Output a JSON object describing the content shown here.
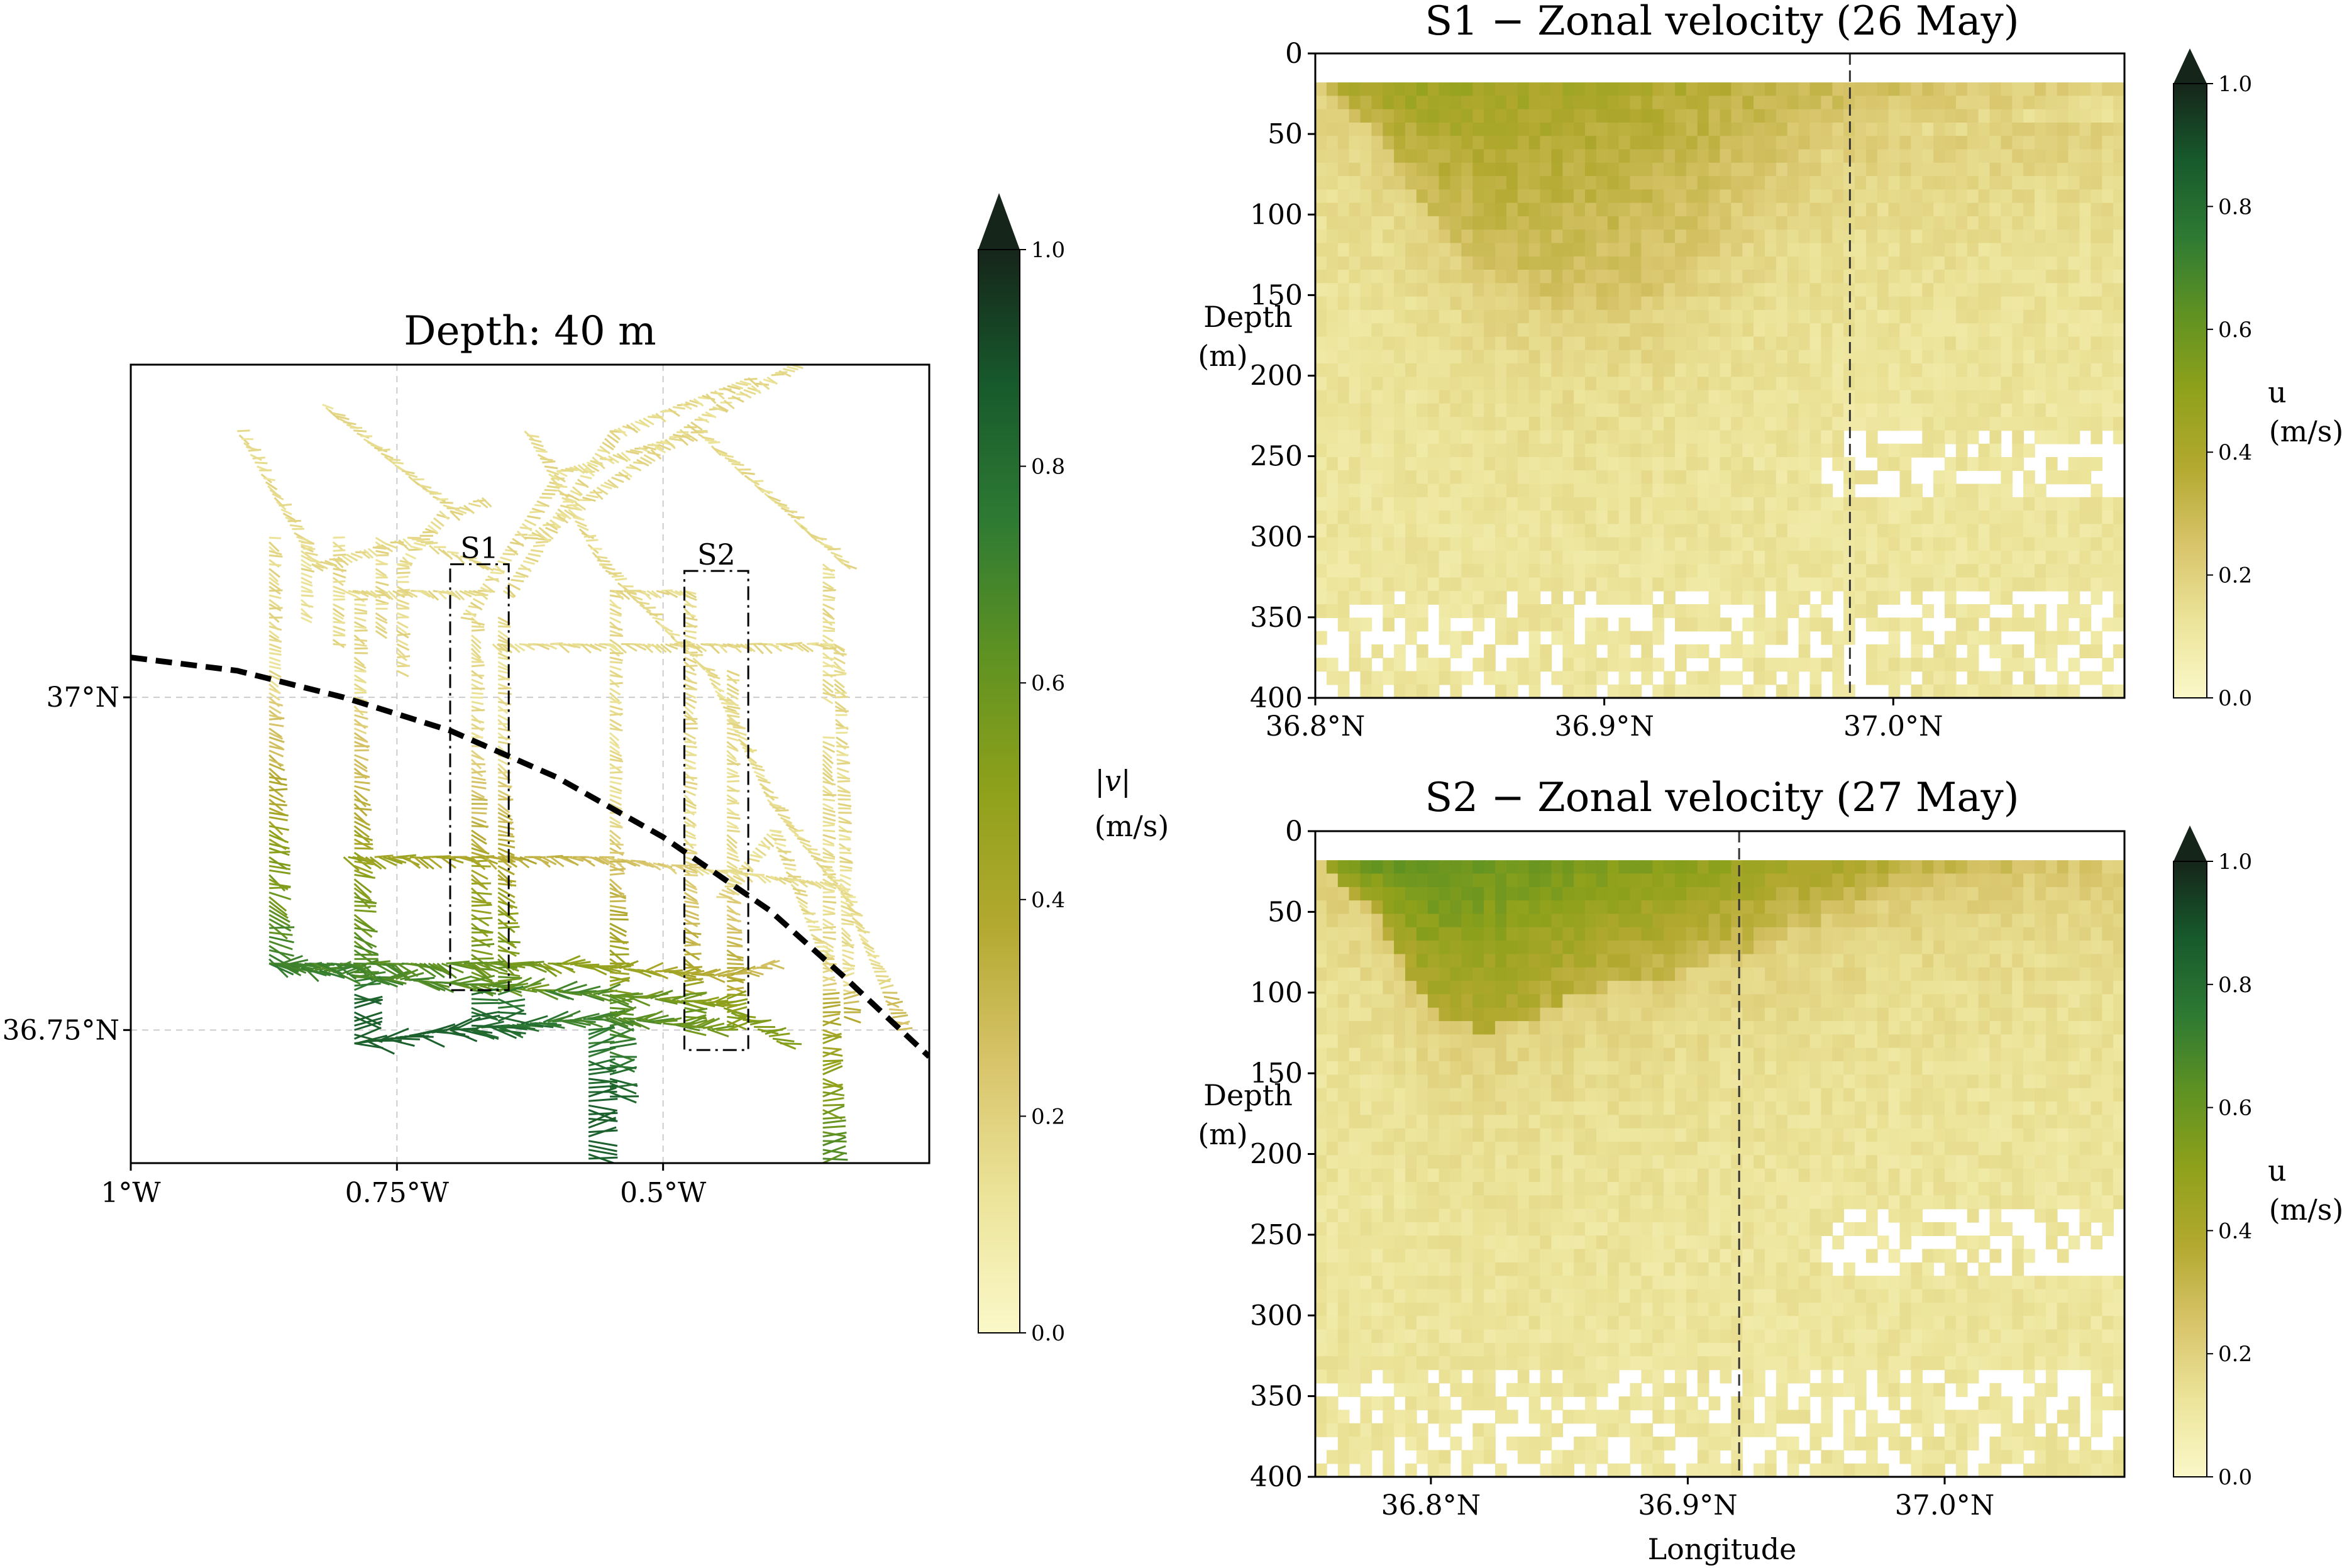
{
  "colormap": {
    "stops": [
      "#fbf8c9",
      "#ece49a",
      "#d8c46a",
      "#b3a930",
      "#8fa11b",
      "#5f9222",
      "#2e7a33",
      "#175a2c",
      "#16251a"
    ]
  },
  "chart_data": [
    {
      "id": "map",
      "type": "vector-map",
      "title": "Depth: 40 m",
      "xticks": [
        "1°W",
        "0.75°W",
        "0.5°W"
      ],
      "xtick_values": [
        -1.0,
        -0.75,
        -0.5
      ],
      "yticks": [
        "37°N",
        "36.75°N"
      ],
      "ytick_values": [
        37.0,
        36.75
      ],
      "xlim": [
        -1.0,
        -0.25
      ],
      "ylim": [
        36.65,
        37.25
      ],
      "grid": true,
      "boxes": [
        {
          "label": "S1",
          "lon_range": [
            -0.7,
            -0.645
          ],
          "lat_range": [
            36.78,
            37.1
          ]
        },
        {
          "label": "S2",
          "lon_range": [
            -0.48,
            -0.42
          ],
          "lat_range": [
            36.735,
            37.095
          ]
        }
      ],
      "front_curve": {
        "style": "dashed",
        "lon": [
          -1.0,
          -0.9,
          -0.8,
          -0.7,
          -0.6,
          -0.5,
          -0.4,
          -0.33,
          -0.25
        ],
        "lat": [
          37.03,
          37.02,
          37.0,
          36.975,
          36.94,
          36.895,
          36.84,
          36.79,
          36.73
        ]
      },
      "colorbar": {
        "label": "|v|",
        "unit": "(m/s)",
        "min": 0.0,
        "max": 1.0,
        "ticks": [
          "0.0",
          "0.2",
          "0.4",
          "0.6",
          "0.8",
          "1.0"
        ],
        "extend": "max"
      }
    },
    {
      "id": "s1",
      "type": "heatmap",
      "title": "S1 − Zonal velocity (26 May)",
      "xticks": [
        "36.8°N",
        "36.9°N",
        "37.0°N"
      ],
      "xtick_values": [
        36.8,
        36.9,
        37.0
      ],
      "xlim": [
        36.8,
        37.08
      ],
      "yticks": [
        "0",
        "50",
        "100",
        "150",
        "200",
        "250",
        "300",
        "350",
        "400"
      ],
      "ylim": [
        400,
        0
      ],
      "ylabel": "Depth (m)",
      "xlabel": "",
      "marker_line_x": 36.985,
      "surface_layer_depth": [
        18,
        45,
        95,
        130,
        148,
        155,
        155,
        130,
        95,
        70,
        52,
        45,
        45,
        40,
        38,
        35
      ],
      "peak_u": 0.52,
      "colorbar": {
        "label": "u",
        "unit": "(m/s)",
        "min": 0.0,
        "max": 1.0,
        "ticks": [
          "0.0",
          "0.2",
          "0.4",
          "0.6",
          "0.8",
          "1.0"
        ],
        "extend": "max"
      }
    },
    {
      "id": "s2",
      "type": "heatmap",
      "title": "S2 − Zonal velocity (27 May)",
      "xticks": [
        "36.8°N",
        "36.9°N",
        "37.0°N"
      ],
      "xtick_values": [
        36.8,
        36.9,
        37.0
      ],
      "xlim": [
        36.755,
        37.07
      ],
      "yticks": [
        "0",
        "50",
        "100",
        "150",
        "200",
        "250",
        "300",
        "350",
        "400"
      ],
      "ylim": [
        400,
        0
      ],
      "ylabel": "Depth (m)",
      "xlabel": "Longitude",
      "marker_line_x": 36.92,
      "surface_layer_depth": [
        18,
        45,
        105,
        120,
        110,
        95,
        90,
        80,
        70,
        55,
        45,
        35,
        30,
        28,
        25,
        25
      ],
      "peak_u": 0.72,
      "colorbar": {
        "label": "u",
        "unit": "(m/s)",
        "min": 0.0,
        "max": 1.0,
        "ticks": [
          "0.0",
          "0.2",
          "0.4",
          "0.6",
          "0.8",
          "1.0"
        ],
        "extend": "max"
      }
    }
  ]
}
